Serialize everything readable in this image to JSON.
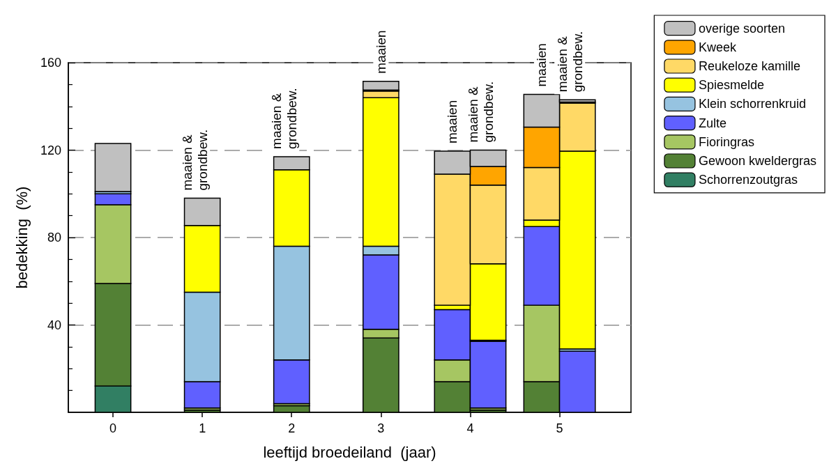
{
  "chart_data": {
    "type": "bar",
    "stacked": true,
    "xlabel": "leeftijd broedeiland  (jaar)",
    "ylabel": "bedekking  (%)",
    "x": [
      0,
      1,
      2,
      3,
      3.8,
      4.2,
      4.8,
      5.2
    ],
    "xlim": [
      -0.5,
      5.8
    ],
    "xticks": [
      0,
      1,
      2,
      3,
      4,
      5
    ],
    "ylim": [
      0,
      160
    ],
    "yticks": [
      {
        "value": 10,
        "label": null
      },
      {
        "value": 20,
        "label": null
      },
      {
        "value": 30,
        "label": null
      },
      40,
      {
        "value": 50,
        "label": null
      },
      {
        "value": 60,
        "label": null
      },
      {
        "value": 70,
        "label": null
      },
      80,
      {
        "value": 90,
        "label": null
      },
      {
        "value": 100,
        "label": null
      },
      {
        "value": 110,
        "label": null
      },
      120,
      {
        "value": 130,
        "label": null
      },
      {
        "value": 140,
        "label": null
      },
      {
        "value": 150,
        "label": null
      },
      160
    ],
    "grid": "y",
    "legend": "top right",
    "series": [
      {
        "name": "Schorrenzoutgras",
        "color": "#317f63",
        "values": [
          12,
          null,
          null,
          null,
          null,
          null,
          null,
          null
        ]
      },
      {
        "name": "Gewoon kweldergras",
        "color": "#538135",
        "values": [
          47,
          1,
          3,
          34,
          14,
          1,
          14,
          null
        ]
      },
      {
        "name": "Fioringras",
        "color": "#a6c662",
        "values": [
          36,
          1,
          1,
          4,
          10,
          1,
          35,
          null
        ]
      },
      {
        "name": "Zulte",
        "color": "#6060ff",
        "values": [
          5,
          12,
          20,
          34,
          23,
          30.5,
          36,
          28
        ]
      },
      {
        "name": "Klein schorrenkruid",
        "color": "#96c3e0",
        "values": [
          1,
          41,
          52,
          4,
          null,
          0.5,
          null,
          1
        ]
      },
      {
        "name": "Spiesmelde",
        "color": "#ffff00",
        "values": [
          null,
          30.5,
          35,
          68,
          2,
          35,
          3,
          90.5
        ]
      },
      {
        "name": "Reukeloze kamille",
        "color": "#ffd966",
        "values": [
          null,
          null,
          null,
          3,
          60,
          36,
          24,
          22
        ]
      },
      {
        "name": "Kweek",
        "color": "#ffa500",
        "values": [
          null,
          null,
          null,
          0.5,
          null,
          8.5,
          18.5,
          0.5
        ]
      },
      {
        "name": "overige soorten",
        "color": "#c0c0c0",
        "values": [
          22,
          12.5,
          6,
          4,
          10.5,
          7.5,
          15,
          1
        ]
      }
    ],
    "annotations": [
      {
        "text": "maaien &\ngrondbew.",
        "x": 1,
        "y": 98
      },
      {
        "text": "maaien &\ngrondbew.",
        "x": 2,
        "y": 117
      },
      {
        "text": "maaien",
        "x": 3,
        "y": 151.5
      },
      {
        "text": "maaien",
        "x": 3.8,
        "y": 119.5
      },
      {
        "text": "maaien &\ngrondbew.",
        "x": 4.2,
        "y": 120
      },
      {
        "text": "maaien",
        "x": 4.8,
        "y": 145.5
      },
      {
        "text": "maaien &\ngrondbew.",
        "x": 5.2,
        "y": 143
      }
    ]
  }
}
